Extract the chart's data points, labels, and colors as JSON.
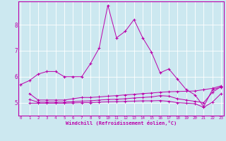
{
  "xlabel": "Windchill (Refroidissement éolien,°C)",
  "bg_color": "#cce8f0",
  "line_color": "#bb00aa",
  "x_ticks": [
    0,
    1,
    2,
    3,
    4,
    5,
    6,
    7,
    8,
    9,
    10,
    11,
    12,
    13,
    14,
    15,
    16,
    17,
    18,
    19,
    20,
    21,
    22,
    23
  ],
  "y_ticks": [
    5,
    6,
    7,
    8
  ],
  "ylim": [
    4.5,
    8.9
  ],
  "xlim": [
    -0.3,
    23.3
  ],
  "series1_x": [
    0,
    1,
    2,
    3,
    4,
    5,
    6,
    7,
    8,
    9,
    10,
    11,
    12,
    13,
    14,
    15,
    16,
    17,
    18,
    19,
    20,
    21,
    22,
    23
  ],
  "series1_y": [
    5.7,
    5.85,
    6.1,
    6.2,
    6.2,
    6.0,
    6.0,
    6.0,
    6.5,
    7.1,
    8.75,
    7.5,
    7.75,
    8.2,
    7.5,
    6.95,
    6.15,
    6.3,
    5.9,
    5.5,
    5.3,
    4.85,
    5.5,
    5.6
  ],
  "series2_x": [
    1,
    2,
    3,
    4,
    5,
    6,
    7,
    8,
    9,
    10,
    11,
    12,
    13,
    14,
    15,
    16,
    17,
    18,
    19,
    20,
    21,
    22,
    23
  ],
  "series2_y": [
    5.35,
    5.1,
    5.1,
    5.1,
    5.1,
    5.15,
    5.2,
    5.2,
    5.22,
    5.25,
    5.27,
    5.3,
    5.32,
    5.35,
    5.37,
    5.4,
    5.42,
    5.43,
    5.44,
    5.45,
    5.5,
    5.55,
    5.65
  ],
  "series3_x": [
    1,
    2,
    3,
    4,
    5,
    6,
    7,
    8,
    9,
    10,
    11,
    12,
    13,
    14,
    15,
    16,
    17,
    18,
    19,
    20,
    21,
    22,
    23
  ],
  "series3_y": [
    4.98,
    4.98,
    4.98,
    4.98,
    4.98,
    4.99,
    5.0,
    5.0,
    5.02,
    5.03,
    5.04,
    5.05,
    5.06,
    5.07,
    5.07,
    5.08,
    5.05,
    5.0,
    4.98,
    4.96,
    4.82,
    5.02,
    5.35
  ],
  "series4_x": [
    1,
    2,
    3,
    4,
    5,
    6,
    7,
    8,
    9,
    10,
    11,
    12,
    13,
    14,
    15,
    16,
    17,
    18,
    19,
    20,
    21,
    22,
    23
  ],
  "series4_y": [
    5.12,
    5.02,
    5.02,
    5.02,
    5.02,
    5.04,
    5.06,
    5.07,
    5.1,
    5.12,
    5.13,
    5.15,
    5.18,
    5.2,
    5.22,
    5.27,
    5.25,
    5.15,
    5.1,
    5.05,
    5.0,
    5.4,
    5.62
  ]
}
